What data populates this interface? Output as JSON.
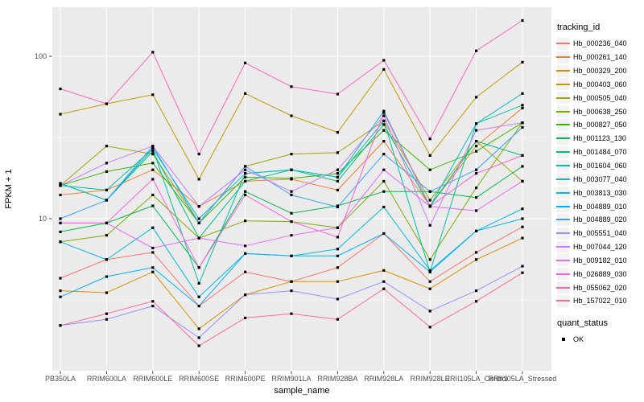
{
  "panel": {
    "background": "#EBEBEB",
    "gridline_color": "#FFFFFF",
    "axis_text_color": "#4D4D4D",
    "tick_color": "#333333",
    "marker_color": "#000000"
  },
  "legend": {
    "tracking_title": "tracking_id",
    "quant_title": "quant_status",
    "quant_items": [
      "OK"
    ],
    "key_background": "#F2F2F2"
  },
  "chart_data": {
    "type": "line",
    "title": "",
    "xlabel": "sample_name",
    "ylabel": "FPKM + 1",
    "y_scale": "log10",
    "y_range": [
      1.5,
      198
    ],
    "grid": "major-and-minor",
    "legend_position": "right",
    "marker": {
      "shape": "square",
      "color": "#000000",
      "legend_label": "OK"
    },
    "y_ticks": [
      {
        "value": 100,
        "label": "100"
      },
      {
        "value": 10,
        "label": "10"
      }
    ],
    "y_minor_gridlines": [
      3.162,
      31.623
    ],
    "categories": [
      "PB350LA",
      "RRIM600LA",
      "RRIM600LE",
      "RRIM600SE",
      "RRIM600PE",
      "RRIM901LA",
      "RRIM928BA",
      "RRIM928LA",
      "RRIM928LE",
      "RRII105LA_Control",
      "RRII105LA_Stressed"
    ],
    "series": [
      {
        "name": "Hb_000236_040",
        "color": "#F8766D",
        "values": [
          4.3,
          5.6,
          6.2,
          2.9,
          4.7,
          4.1,
          5.0,
          8.1,
          4.1,
          6.2,
          8.9
        ]
      },
      {
        "name": "Hb_000261_140",
        "color": "#EA8331",
        "values": [
          14,
          15,
          20,
          11.9,
          17,
          17.5,
          15,
          30,
          12,
          28,
          48
        ]
      },
      {
        "name": "Hb_000329_200",
        "color": "#D89000",
        "values": [
          3.6,
          3.5,
          4.7,
          2.1,
          3.4,
          4.1,
          4.1,
          4.8,
          3.7,
          5.6,
          7.6
        ]
      },
      {
        "name": "Hb_000403_060",
        "color": "#C09B00",
        "values": [
          44,
          51,
          58,
          17.5,
          59,
          43,
          34,
          83,
          24.5,
          56,
          92
        ]
      },
      {
        "name": "Hb_000505_040",
        "color": "#A3A500",
        "values": [
          16,
          28,
          25,
          9.4,
          21,
          25,
          25.5,
          40,
          13,
          30,
          17
        ]
      },
      {
        "name": "Hb_000638_250",
        "color": "#7CAE00",
        "values": [
          7.2,
          7.9,
          14,
          7.6,
          9.7,
          9.6,
          8.8,
          17,
          5.6,
          15.5,
          39
        ]
      },
      {
        "name": "Hb_000827_050",
        "color": "#39B600",
        "values": [
          16,
          19.5,
          22,
          9.4,
          18,
          17.7,
          19,
          35,
          20,
          26,
          39
        ]
      },
      {
        "name": "Hb_001123_130",
        "color": "#00BB4E",
        "values": [
          8.3,
          9.4,
          12,
          5.0,
          14.7,
          10.8,
          12,
          14.7,
          14.7,
          13.5,
          21
        ]
      },
      {
        "name": "Hb_001484_070",
        "color": "#00BF7D",
        "values": [
          16.5,
          13,
          26,
          7.6,
          17,
          20,
          17,
          38,
          11.9,
          30,
          24.5
        ]
      },
      {
        "name": "Hb_001604_060",
        "color": "#00C1A3",
        "values": [
          16,
          15,
          27,
          4.0,
          19,
          20,
          18,
          40,
          4.7,
          38.5,
          50
        ]
      },
      {
        "name": "Hb_003077_040",
        "color": "#00BFC4",
        "values": [
          16.5,
          13,
          27,
          10,
          19,
          20,
          18,
          46,
          11.9,
          38.5,
          59
        ]
      },
      {
        "name": "Hb_003813_030",
        "color": "#00BAE0",
        "values": [
          7.2,
          5.6,
          8.8,
          3.3,
          6.1,
          5.9,
          6.5,
          11.8,
          4.8,
          8.4,
          11.5
        ]
      },
      {
        "name": "Hb_004889_010",
        "color": "#00B0F6",
        "values": [
          3.3,
          4.4,
          5.0,
          2.9,
          6.1,
          5.9,
          5.9,
          8.1,
          4.7,
          8.4,
          10
        ]
      },
      {
        "name": "Hb_004889_020",
        "color": "#35A2FF",
        "values": [
          10,
          13,
          28,
          9.4,
          21,
          14,
          11.8,
          25,
          14.7,
          20,
          36.5
        ]
      },
      {
        "name": "Hb_005551_040",
        "color": "#9590FF",
        "values": [
          2.2,
          2.4,
          2.9,
          1.85,
          3.4,
          3.6,
          3.2,
          4.1,
          2.7,
          3.6,
          5.1
        ]
      },
      {
        "name": "Hb_007044_120",
        "color": "#C77CFF",
        "values": [
          16,
          22,
          28,
          11.9,
          20,
          14.7,
          20,
          43,
          9.1,
          35,
          39
        ]
      },
      {
        "name": "Hb_009182_010",
        "color": "#E76BF3",
        "values": [
          9.4,
          9.4,
          6.6,
          7.6,
          6.8,
          7.9,
          8.8,
          20,
          11.9,
          11.2,
          17
        ]
      },
      {
        "name": "Hb_026889_030",
        "color": "#FA62DB",
        "values": [
          9.4,
          9.4,
          17.5,
          5.0,
          14,
          9.6,
          7.7,
          45,
          11.9,
          19,
          24.5
        ]
      },
      {
        "name": "Hb_055062_020",
        "color": "#FF62BC",
        "values": [
          63,
          51,
          106,
          25,
          91,
          65,
          58.5,
          94.5,
          31,
          108,
          166
        ]
      },
      {
        "name": "Hb_157022_010",
        "color": "#FF6A98",
        "values": [
          2.2,
          2.6,
          3.1,
          1.65,
          2.45,
          2.6,
          2.4,
          3.7,
          2.15,
          3.1,
          4.65
        ]
      }
    ]
  }
}
